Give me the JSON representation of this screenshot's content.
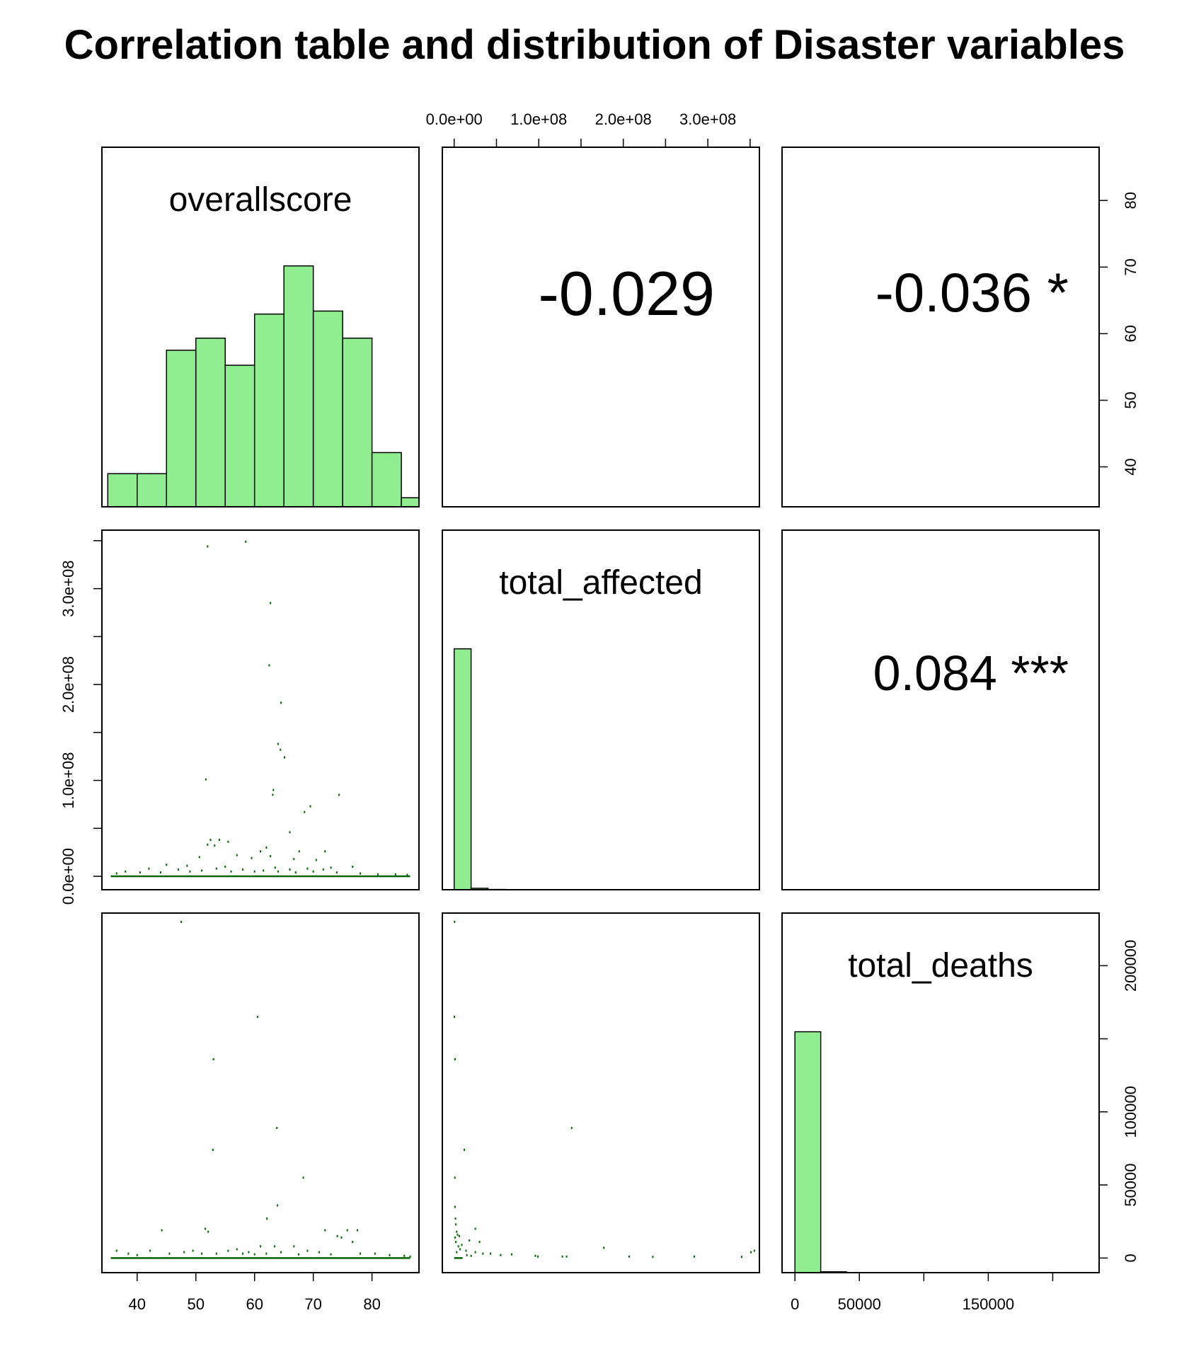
{
  "title": "Correlation table and distribution of Disaster variables",
  "colors": {
    "hist_fill": "#90EE90",
    "point": "#006400",
    "frame": "#000000",
    "background": "#ffffff"
  },
  "variables": [
    "overallscore",
    "total_affected",
    "total_deaths"
  ],
  "correlations": [
    {
      "pair": [
        "overallscore",
        "total_affected"
      ],
      "text": "-0.029"
    },
    {
      "pair": [
        "overallscore",
        "total_deaths"
      ],
      "text": "-0.036 *"
    },
    {
      "pair": [
        "total_affected",
        "total_deaths"
      ],
      "text": "0.084 ***"
    }
  ],
  "chart_data": {
    "type": "scatter",
    "subtype": "pairs-matrix",
    "title": "Correlation table and distribution of Disaster variables",
    "axes": {
      "overallscore": {
        "ticks": [
          40,
          50,
          60,
          70,
          80
        ],
        "tick_labels": [
          "40",
          "50",
          "60",
          "70",
          "80"
        ],
        "range": [
          34,
          88
        ]
      },
      "total_affected": {
        "ticks": [
          0,
          100000000,
          200000000,
          300000000
        ],
        "tick_labels": [
          "0.0e+00",
          "1.0e+08",
          "2.0e+08",
          "3.0e+08"
        ],
        "minor_ticks": [
          50000000,
          150000000,
          250000000,
          350000000
        ],
        "range": [
          -14000000,
          361000000
        ]
      },
      "total_deaths": {
        "ticks": [
          0,
          50000,
          100000,
          150000,
          200000
        ],
        "tick_labels": [
          "0",
          "50000",
          "100000",
          "150000",
          "200000"
        ],
        "bottom_tick_labels": [
          "0",
          "50000",
          "150000"
        ],
        "right_tick_labels": [
          "0",
          "50000",
          "100000",
          "200000"
        ],
        "range": [
          -10000,
          236000
        ]
      }
    },
    "histograms": {
      "overallscore": {
        "breaks": [
          35,
          40,
          45,
          50,
          55,
          60,
          65,
          70,
          75,
          80,
          85,
          90
        ],
        "counts": [
          11,
          11,
          52,
          56,
          47,
          64,
          80,
          65,
          56,
          18,
          3
        ]
      },
      "total_affected": {
        "breaks": [
          0,
          20000000,
          40000000,
          60000000,
          80000000,
          100000000,
          120000000,
          140000000,
          160000000,
          180000000,
          200000000,
          220000000,
          240000000,
          260000000,
          280000000,
          300000000,
          320000000,
          340000000,
          360000000
        ],
        "counts": [
          6700,
          40,
          8,
          5,
          5,
          2,
          3,
          3,
          2,
          1,
          1,
          1,
          0,
          0,
          1,
          0,
          1,
          1
        ]
      },
      "total_deaths": {
        "breaks": [
          0,
          20000,
          40000,
          60000,
          80000,
          100000,
          120000,
          140000,
          160000,
          180000,
          200000,
          220000,
          240000
        ],
        "counts": [
          6800,
          25,
          2,
          1,
          1,
          0,
          0,
          0,
          1,
          0,
          1,
          1
        ]
      }
    },
    "points": {
      "overallscore_vs_total_affected": [
        [
          58.5,
          349000000
        ],
        [
          52,
          344000000
        ],
        [
          62.7,
          285000000
        ],
        [
          62.5,
          220000000
        ],
        [
          64.5,
          181000000
        ],
        [
          64,
          138000000
        ],
        [
          64.4,
          132000000
        ],
        [
          65.1,
          124000000
        ],
        [
          51.7,
          101000000
        ],
        [
          63.2,
          90000000
        ],
        [
          63.1,
          85000000
        ],
        [
          74.4,
          85000000
        ],
        [
          69.5,
          73000000
        ],
        [
          68.5,
          67000000
        ],
        [
          66,
          46000000
        ],
        [
          52.5,
          38000000
        ],
        [
          54,
          38000000
        ],
        [
          55.5,
          36000000
        ],
        [
          52,
          33000000
        ],
        [
          53.2,
          32000000
        ],
        [
          62,
          30000000
        ],
        [
          61,
          26000000
        ],
        [
          67.6,
          26000000
        ],
        [
          72,
          26000000
        ],
        [
          57,
          22000000
        ],
        [
          62.7,
          21000000
        ],
        [
          50.6,
          20000000
        ],
        [
          59.5,
          19000000
        ],
        [
          66.7,
          18000000
        ],
        [
          70.5,
          17000000
        ],
        [
          45,
          12000000
        ],
        [
          48.5,
          11000000
        ],
        [
          55,
          10000000
        ],
        [
          63.5,
          9000000
        ],
        [
          76.7,
          10000000
        ],
        [
          73,
          9000000
        ],
        [
          42,
          8000000
        ],
        [
          47,
          7000000
        ],
        [
          53.5,
          8000000
        ],
        [
          58,
          7000000
        ],
        [
          66,
          7000000
        ],
        [
          69,
          8000000
        ],
        [
          71.7,
          7000000
        ],
        [
          38,
          5000000
        ],
        [
          40.5,
          4000000
        ],
        [
          44,
          4000000
        ],
        [
          49,
          5000000
        ],
        [
          51,
          6000000
        ],
        [
          56,
          5000000
        ],
        [
          60,
          5000000
        ],
        [
          61.5,
          6000000
        ],
        [
          64,
          5000000
        ],
        [
          67,
          4000000
        ],
        [
          70,
          5000000
        ],
        [
          74,
          4000000
        ],
        [
          78,
          3000000
        ],
        [
          81,
          2000000
        ],
        [
          84,
          2000000
        ],
        [
          36.5,
          3000000
        ],
        [
          86,
          1500000
        ]
      ],
      "overallscore_vs_total_deaths": [
        [
          47.5,
          230000
        ],
        [
          60.5,
          165000
        ],
        [
          53,
          136000
        ],
        [
          63.8,
          89000
        ],
        [
          52.9,
          74000
        ],
        [
          68.3,
          55000
        ],
        [
          62.1,
          27000
        ],
        [
          63.9,
          36000
        ],
        [
          44.2,
          19000
        ],
        [
          51.6,
          20000
        ],
        [
          52.1,
          18000
        ],
        [
          72,
          19000
        ],
        [
          74.1,
          15000
        ],
        [
          75.8,
          19000
        ],
        [
          77.5,
          19000
        ],
        [
          74.8,
          14000
        ],
        [
          76.7,
          11000
        ],
        [
          61,
          8000
        ],
        [
          63.4,
          8000
        ],
        [
          66.7,
          8000
        ],
        [
          42.2,
          5000
        ],
        [
          48,
          4000
        ],
        [
          49.5,
          5000
        ],
        [
          55.5,
          5000
        ],
        [
          57,
          6000
        ],
        [
          59,
          4000
        ],
        [
          64.5,
          4000
        ],
        [
          69,
          5000
        ],
        [
          71,
          4000
        ],
        [
          78,
          3000
        ],
        [
          80.5,
          3000
        ],
        [
          83,
          2000
        ],
        [
          36.5,
          5000
        ],
        [
          38.5,
          3000
        ],
        [
          40,
          2000
        ],
        [
          45.5,
          3000
        ],
        [
          51,
          3000
        ],
        [
          53.5,
          3000
        ],
        [
          58,
          3000
        ],
        [
          60,
          2500
        ],
        [
          62,
          3000
        ],
        [
          67.5,
          2500
        ],
        [
          73,
          2500
        ],
        [
          85.5,
          1500
        ],
        [
          86.5,
          1000
        ]
      ],
      "total_affected_vs_total_deaths": [
        [
          500000,
          230000
        ],
        [
          300000,
          165000
        ],
        [
          1000000,
          136000
        ],
        [
          139000000,
          89000
        ],
        [
          12000000,
          74000
        ],
        [
          800000,
          55000
        ],
        [
          1000000,
          35000
        ],
        [
          1500000,
          27000
        ],
        [
          2000000,
          23000
        ],
        [
          25000000,
          20000
        ],
        [
          3000000,
          18000
        ],
        [
          4000000,
          16000
        ],
        [
          6000000,
          15000
        ],
        [
          1000000,
          14000
        ],
        [
          18000000,
          12000
        ],
        [
          2000000,
          11000
        ],
        [
          30000000,
          11000
        ],
        [
          9000000,
          9000
        ],
        [
          177000000,
          7000
        ],
        [
          355000000,
          5000
        ],
        [
          351000000,
          4000
        ],
        [
          14000000,
          5000
        ],
        [
          25000000,
          4000
        ],
        [
          34000000,
          3000
        ],
        [
          43000000,
          3000
        ],
        [
          55000000,
          2000
        ],
        [
          68000000,
          2500
        ],
        [
          96000000,
          1500
        ],
        [
          99000000,
          1000
        ],
        [
          128000000,
          1000
        ],
        [
          133000000,
          1000
        ],
        [
          207000000,
          1000
        ],
        [
          235000000,
          800
        ],
        [
          284000000,
          1000
        ],
        [
          340000000,
          800
        ],
        [
          5000000,
          8000
        ],
        [
          7000000,
          6000
        ],
        [
          3000000,
          4000
        ],
        [
          15000000,
          2000
        ],
        [
          20000000,
          1500
        ]
      ]
    }
  }
}
